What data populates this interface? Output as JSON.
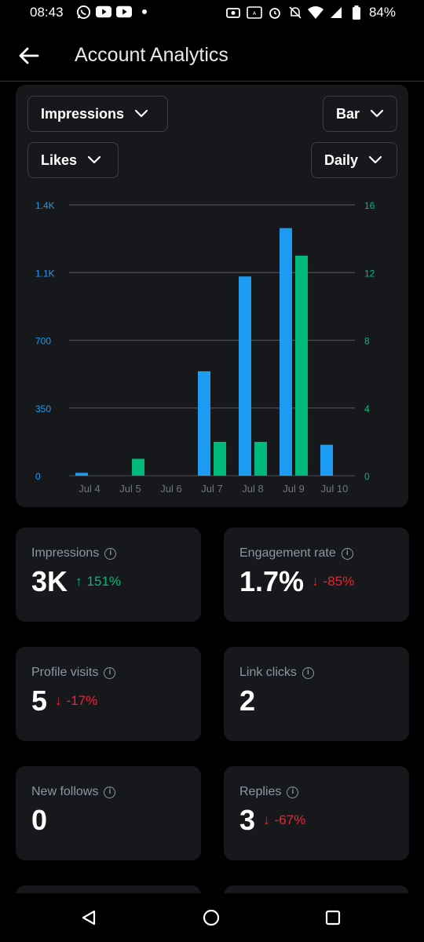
{
  "status_bar": {
    "time": "08:43",
    "battery": "84%",
    "left_icons": [
      "whatsapp-icon",
      "youtube-icon",
      "youtube-icon",
      "dot-icon"
    ],
    "right_icons": [
      "screen-record-icon",
      "auto-brightness-icon",
      "alarm-icon",
      "mute-icon",
      "wifi-icon",
      "signal-icon",
      "battery-icon"
    ]
  },
  "header": {
    "title": "Account Analytics",
    "back_icon": "arrow-left-icon"
  },
  "controls": {
    "metric_primary": "Impressions",
    "metric_secondary": "Likes",
    "chart_type": "Bar",
    "interval": "Daily"
  },
  "colors": {
    "impressions": "#1d9bf0",
    "likes": "#00ba7c",
    "positive": "#00ba7c",
    "negative": "#f4212e"
  },
  "chart_data": {
    "type": "bar",
    "categories": [
      "Jul 4",
      "Jul 5",
      "Jul 6",
      "Jul 7",
      "Jul 8",
      "Jul 9",
      "Jul 10"
    ],
    "series": [
      {
        "name": "Impressions",
        "axis": "left",
        "values": [
          15,
          0,
          0,
          540,
          1030,
          1280,
          160
        ]
      },
      {
        "name": "Likes",
        "axis": "right",
        "values": [
          0,
          1,
          0,
          2,
          2,
          13,
          0
        ]
      }
    ],
    "y_left": {
      "ticks": [
        "0",
        "350",
        "700",
        "1.1K",
        "1.4K"
      ],
      "ylim": [
        0,
        1400
      ]
    },
    "y_right": {
      "ticks": [
        "0",
        "4",
        "8",
        "12",
        "16"
      ],
      "ylim": [
        0,
        16
      ]
    },
    "grid": true
  },
  "stats": [
    {
      "label": "Impressions",
      "value": "3K",
      "change": "151%",
      "direction": "up"
    },
    {
      "label": "Engagement rate",
      "value": "1.7%",
      "change": "-85%",
      "direction": "down"
    },
    {
      "label": "Profile visits",
      "value": "5",
      "change": "-17%",
      "direction": "down"
    },
    {
      "label": "Link clicks",
      "value": "2",
      "change": "",
      "direction": ""
    },
    {
      "label": "New follows",
      "value": "0",
      "change": "",
      "direction": ""
    },
    {
      "label": "Replies",
      "value": "3",
      "change": "-67%",
      "direction": "down"
    }
  ],
  "nav": {
    "back": "triangle-back-icon",
    "home": "circle-home-icon",
    "recents": "square-recents-icon"
  }
}
